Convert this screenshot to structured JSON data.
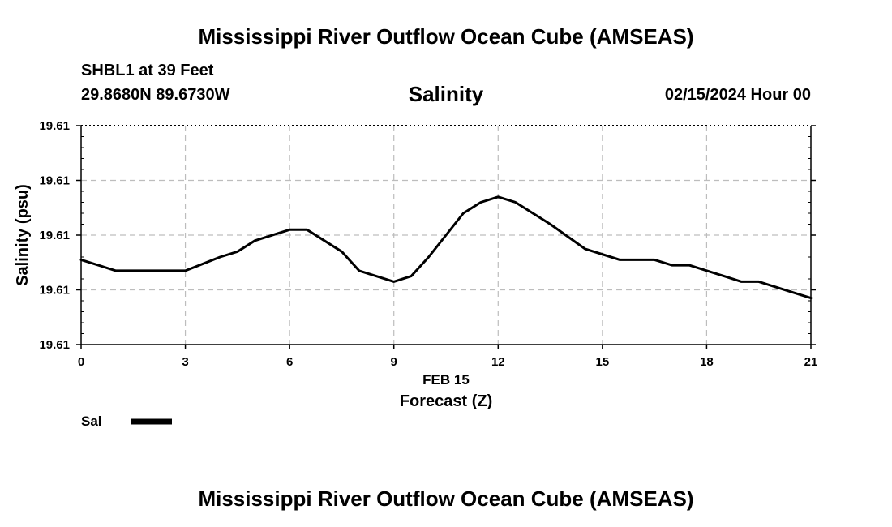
{
  "header": {
    "title": "Mississippi River Outflow Ocean Cube (AMSEAS)",
    "station": "SHBL1 at 39 Feet",
    "coords": "29.8680N  89.6730W",
    "subtitle": "Salinity",
    "datetime": "02/15/2024 Hour 00"
  },
  "footer": {
    "title": "Mississippi River Outflow Ocean Cube (AMSEAS)"
  },
  "chart_data": {
    "type": "line",
    "title": "Salinity",
    "xlabel": "Forecast (Z)",
    "xlabel_date": "FEB 15",
    "ylabel": "Salinity (psu)",
    "xlim": [
      0,
      21
    ],
    "ylim": [
      0,
      4
    ],
    "x_ticks": [
      0,
      3,
      6,
      9,
      12,
      15,
      18,
      21
    ],
    "y_ticks": [
      {
        "value": 0,
        "label": "19.61"
      },
      {
        "value": 1,
        "label": "19.61"
      },
      {
        "value": 2,
        "label": "19.61"
      },
      {
        "value": 3,
        "label": "19.61"
      },
      {
        "value": 4,
        "label": "19.61"
      }
    ],
    "grid": true,
    "legend": "bottom-left",
    "series": [
      {
        "name": "Sal",
        "color": "#000000",
        "x": [
          0,
          1,
          2,
          3,
          4,
          4.5,
          5,
          6,
          6.5,
          7.5,
          8,
          9,
          9.5,
          10,
          11,
          11.5,
          12,
          12.5,
          13.5,
          14.5,
          15.5,
          16.5,
          17,
          17.5,
          18.5,
          19,
          19.5,
          20.5,
          21
        ],
        "y": [
          1.55,
          1.35,
          1.35,
          1.35,
          1.6,
          1.7,
          1.9,
          2.1,
          2.1,
          1.7,
          1.35,
          1.15,
          1.25,
          1.6,
          2.4,
          2.6,
          2.7,
          2.6,
          2.2,
          1.75,
          1.55,
          1.55,
          1.45,
          1.45,
          1.25,
          1.15,
          1.15,
          0.95,
          0.85
        ]
      }
    ]
  }
}
